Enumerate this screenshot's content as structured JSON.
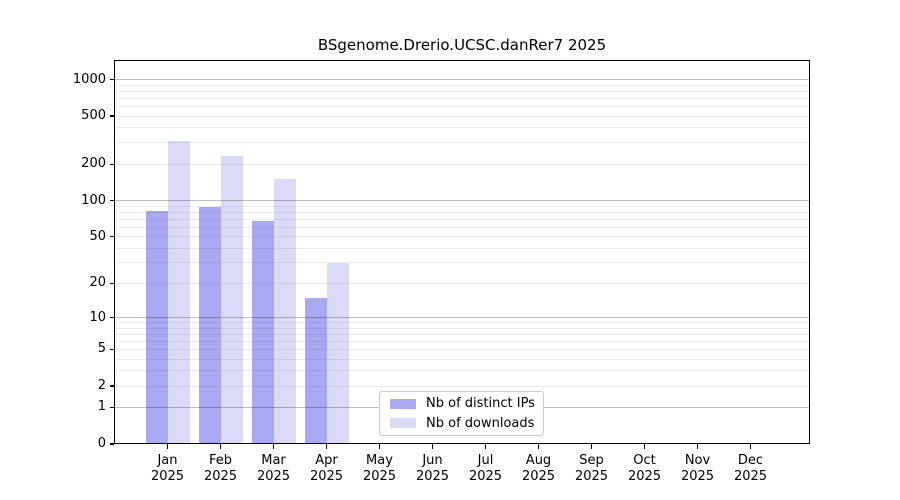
{
  "chart_data": {
    "type": "bar",
    "title": "BSgenome.Drerio.UCSC.danRer7 2025",
    "categories": [
      {
        "month": "Jan",
        "year": "2025"
      },
      {
        "month": "Feb",
        "year": "2025"
      },
      {
        "month": "Mar",
        "year": "2025"
      },
      {
        "month": "Apr",
        "year": "2025"
      },
      {
        "month": "May",
        "year": "2025"
      },
      {
        "month": "Jun",
        "year": "2025"
      },
      {
        "month": "Jul",
        "year": "2025"
      },
      {
        "month": "Aug",
        "year": "2025"
      },
      {
        "month": "Sep",
        "year": "2025"
      },
      {
        "month": "Oct",
        "year": "2025"
      },
      {
        "month": "Nov",
        "year": "2025"
      },
      {
        "month": "Dec",
        "year": "2025"
      }
    ],
    "series": [
      {
        "name": "Nb of distinct IPs",
        "color": "#a9a9f3",
        "values": [
          82,
          88,
          67,
          15,
          null,
          null,
          null,
          null,
          null,
          null,
          null,
          null
        ]
      },
      {
        "name": "Nb of downloads",
        "color": "#dbdbf9",
        "values": [
          310,
          235,
          150,
          30,
          null,
          null,
          null,
          null,
          null,
          null,
          null,
          null
        ]
      }
    ],
    "yticks": [
      0,
      1,
      2,
      5,
      10,
      20,
      50,
      100,
      200,
      500,
      1000
    ],
    "yscale": "log1p",
    "ylim": [
      0,
      1450
    ],
    "grid": true,
    "legend_position": "inside-bottom-center"
  },
  "colors": {
    "background": "#ffffff",
    "axis": "#000000",
    "major_gridline": "rgba(0,0,0,0.26)",
    "minor_gridline": "rgba(0,0,0,0.08)",
    "legend_border": "#cccccc",
    "legend_background": "rgba(255,255,255,0.92)"
  }
}
